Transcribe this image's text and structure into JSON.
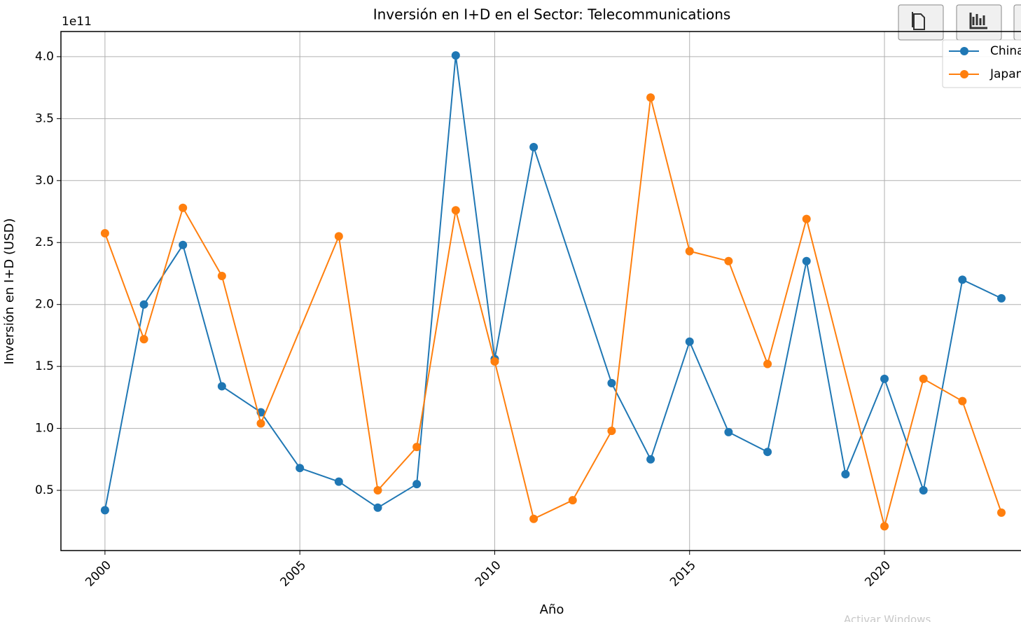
{
  "chart_data": {
    "type": "line",
    "title": "Inversión en I+D en el Sector: Telecommunications",
    "xlabel": "Año",
    "ylabel": "Inversión en I+D (USD)",
    "y_offset_label": "1e11",
    "series": [
      {
        "name": "China",
        "color": "#1f77b4",
        "x": [
          2000,
          2001,
          2002,
          2003,
          2004,
          2005,
          2006,
          2007,
          2008,
          2009,
          2010,
          2011,
          2013,
          2014,
          2015,
          2016,
          2017,
          2018,
          2019,
          2020,
          2021,
          2022,
          2023
        ],
        "values": [
          0.34,
          2.0,
          2.48,
          1.34,
          1.13,
          0.68,
          0.57,
          0.36,
          0.55,
          4.01,
          1.56,
          3.27,
          1.365,
          0.75,
          1.7,
          0.97,
          0.81,
          2.35,
          0.63,
          1.4,
          0.5,
          2.2,
          2.05
        ]
      },
      {
        "name": "Japan",
        "color": "#ff7f0e",
        "x": [
          2000,
          2001,
          2002,
          2003,
          2004,
          2006,
          2007,
          2008,
          2009,
          2010,
          2011,
          2012,
          2013,
          2014,
          2015,
          2016,
          2017,
          2018,
          2020,
          2021,
          2022,
          2023
        ],
        "values": [
          2.575,
          1.72,
          2.78,
          2.23,
          1.04,
          2.55,
          0.5,
          0.85,
          2.76,
          1.54,
          0.27,
          0.42,
          0.98,
          3.67,
          2.43,
          2.35,
          1.52,
          2.69,
          0.21,
          1.4,
          1.22,
          0.32
        ]
      }
    ],
    "xlim": [
      1998.87,
      2024.15
    ],
    "ylim": [
      0.014,
      4.203
    ],
    "xticks": [
      2000,
      2005,
      2010,
      2015,
      2020
    ],
    "yticks": [
      {
        "value": 0.5,
        "label": "0.5"
      },
      {
        "value": 1,
        "label": "1.0"
      },
      {
        "value": 1.5,
        "label": "1.5"
      },
      {
        "value": 2,
        "label": "2.0"
      },
      {
        "value": 2.5,
        "label": "2.5"
      },
      {
        "value": 3,
        "label": "3.0"
      },
      {
        "value": 3.5,
        "label": "3.5"
      },
      {
        "value": 4,
        "label": "4.0"
      }
    ],
    "grid": true,
    "legend": "upper right"
  },
  "overlay": {
    "watermark": "Activar Windows"
  }
}
